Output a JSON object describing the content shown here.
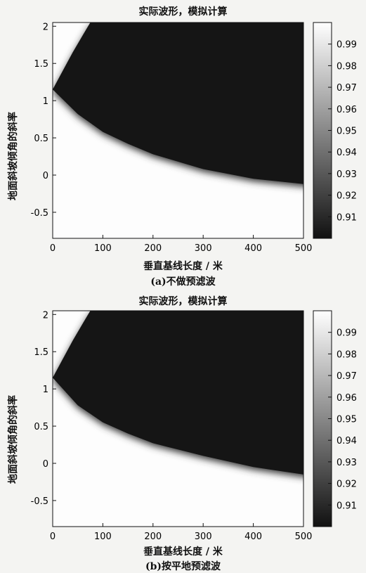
{
  "chart_data": [
    {
      "type": "heatmap",
      "title": "实际波形，模拟计算",
      "xlabel": "垂直基线长度 / 米",
      "ylabel": "地面斜坡倾角的斜率",
      "caption": "(a)不做预滤波",
      "xlim": [
        0,
        500
      ],
      "ylim": [
        -0.85,
        2.05
      ],
      "x_ticks": [
        "0",
        "100",
        "200",
        "300",
        "400",
        "500"
      ],
      "y_ticks": [
        "-0.5",
        "0",
        "0.5",
        "1",
        "1.5",
        "2"
      ],
      "colorbar": {
        "range": [
          0.9,
          1.0
        ],
        "ticks": [
          "0.91",
          "0.92",
          "0.93",
          "0.94",
          "0.95",
          "0.96",
          "0.97",
          "0.98",
          "0.99"
        ]
      },
      "apex": {
        "x": 0,
        "y": 1.15
      },
      "upper_boundary": [
        {
          "x": 0,
          "y": 1.15
        },
        {
          "x": 20,
          "y": 1.4
        },
        {
          "x": 40,
          "y": 1.65
        },
        {
          "x": 60,
          "y": 1.88
        },
        {
          "x": 75,
          "y": 2.05
        }
      ],
      "lower_boundary": [
        {
          "x": 0,
          "y": 1.15
        },
        {
          "x": 50,
          "y": 0.82
        },
        {
          "x": 100,
          "y": 0.58
        },
        {
          "x": 150,
          "y": 0.42
        },
        {
          "x": 200,
          "y": 0.28
        },
        {
          "x": 300,
          "y": 0.08
        },
        {
          "x": 400,
          "y": -0.05
        },
        {
          "x": 500,
          "y": -0.12
        }
      ]
    },
    {
      "type": "heatmap",
      "title": "实际波形，模拟计算",
      "xlabel": "垂直基线长度 / 米",
      "ylabel": "地面斜坡倾角的斜率",
      "caption": "(b)按平地预滤波",
      "xlim": [
        0,
        500
      ],
      "ylim": [
        -0.85,
        2.05
      ],
      "x_ticks": [
        "0",
        "100",
        "200",
        "300",
        "400",
        "500"
      ],
      "y_ticks": [
        "-0.5",
        "0",
        "0.5",
        "1",
        "1.5",
        "2"
      ],
      "colorbar": {
        "range": [
          0.9,
          1.0
        ],
        "ticks": [
          "0.91",
          "0.92",
          "0.93",
          "0.94",
          "0.95",
          "0.96",
          "0.97",
          "0.98",
          "0.99"
        ]
      },
      "apex": {
        "x": 0,
        "y": 1.15
      },
      "upper_boundary": [
        {
          "x": 0,
          "y": 1.15
        },
        {
          "x": 20,
          "y": 1.4
        },
        {
          "x": 40,
          "y": 1.65
        },
        {
          "x": 60,
          "y": 1.88
        },
        {
          "x": 75,
          "y": 2.05
        }
      ],
      "lower_boundary": [
        {
          "x": 0,
          "y": 1.15
        },
        {
          "x": 50,
          "y": 0.78
        },
        {
          "x": 100,
          "y": 0.55
        },
        {
          "x": 150,
          "y": 0.4
        },
        {
          "x": 200,
          "y": 0.27
        },
        {
          "x": 300,
          "y": 0.1
        },
        {
          "x": 400,
          "y": -0.05
        },
        {
          "x": 500,
          "y": -0.15
        }
      ]
    }
  ]
}
